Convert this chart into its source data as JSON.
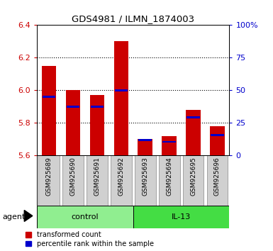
{
  "title": "GDS4981 / ILMN_1874003",
  "categories": [
    "GSM925689",
    "GSM925690",
    "GSM925691",
    "GSM925692",
    "GSM925693",
    "GSM925694",
    "GSM925695",
    "GSM925696"
  ],
  "red_values": [
    6.15,
    6.0,
    5.97,
    6.3,
    5.7,
    5.72,
    5.88,
    5.78
  ],
  "blue_values": [
    5.96,
    5.9,
    5.9,
    6.0,
    5.695,
    5.685,
    5.835,
    5.725
  ],
  "bar_bottom": 5.6,
  "ylim": [
    5.6,
    6.4
  ],
  "y2lim": [
    0,
    100
  ],
  "yticks": [
    5.6,
    5.8,
    6.0,
    6.2,
    6.4
  ],
  "y2ticks": [
    0,
    25,
    50,
    75,
    100
  ],
  "y2ticklabels": [
    "0",
    "25",
    "50",
    "75",
    "100%"
  ],
  "red_color": "#CC0000",
  "blue_color": "#0000CC",
  "control_color": "#90EE90",
  "il13_color": "#44DD44",
  "label_bg": "#D0D0D0",
  "agent_label": "agent",
  "legend_red": "transformed count",
  "legend_blue": "percentile rank within the sample",
  "bar_width": 0.6,
  "plot_bg": "#ffffff"
}
